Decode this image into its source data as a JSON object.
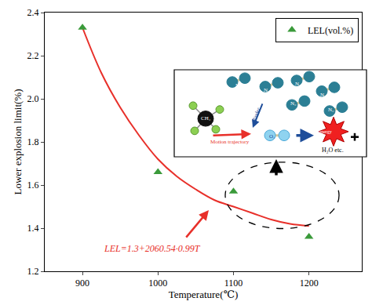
{
  "chart_data": {
    "type": "scatter",
    "x_label": "Temperature(℃)",
    "y_label": "Lower explosion limit(%)",
    "xlim": [
      850,
      1270
    ],
    "xticks": [
      900,
      1000,
      1100,
      1200
    ],
    "ylim": [
      1.2,
      2.4
    ],
    "yticks": [
      1.2,
      1.4,
      1.6,
      1.8,
      {
        "value": 2,
        "label": "2.0"
      },
      2.2,
      2.4
    ],
    "grid": false,
    "legend": "upper right",
    "series": [
      {
        "type": "line",
        "color": "#e8302a",
        "line_style": "solid",
        "x": [
          900,
          925,
          950,
          975,
          1000,
          1025,
          1050,
          1075,
          1100,
          1125,
          1150,
          1175,
          1200
        ],
        "values": [
          2.33,
          2.12,
          1.96,
          1.83,
          1.72,
          1.64,
          1.58,
          1.53,
          1.5,
          1.47,
          1.44,
          1.42,
          1.41
        ]
      },
      {
        "name": "LEL(vol.%)",
        "type": "scatter",
        "color": "#3a9a3a",
        "marker": "triangle-up",
        "x": [
          900,
          1000,
          1100,
          1200
        ],
        "values": [
          2.33,
          1.66,
          1.57,
          1.36
        ]
      }
    ],
    "annotations": [
      "LEL=1.3+2060.54·0.99T"
    ],
    "inset": {
      "molecule_n2": "N₂",
      "molecule_ch4": "CH₄",
      "molecule_o2": "O₂",
      "hinder": "Hinder",
      "motion": "Motion trajectory",
      "energy": "Less energy",
      "products": "H₂O etc."
    }
  }
}
